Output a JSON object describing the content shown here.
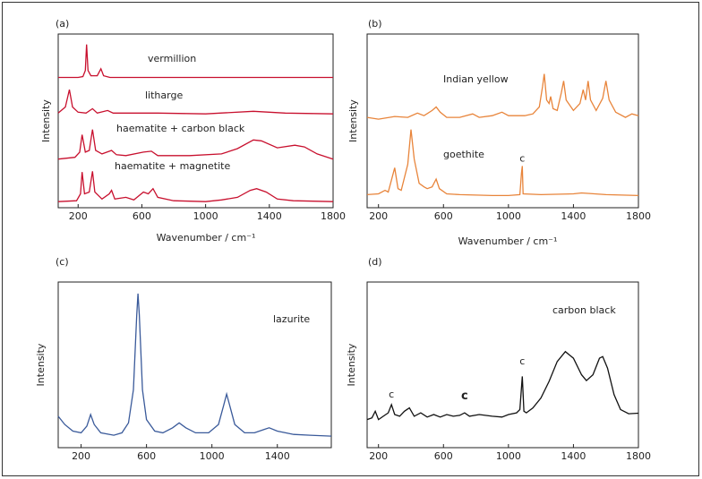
{
  "chart_data": [
    {
      "type": "line",
      "label": "(a)",
      "ylabel": "Intensity",
      "xlabel": "Wavenumber / cm⁻¹",
      "xlim": [
        75,
        1800
      ],
      "xticks": [
        200,
        600,
        1000,
        1400,
        1800
      ],
      "ylim": [
        0,
        100
      ],
      "series": [
        {
          "name": "vermillion",
          "color": "#c8102e",
          "x": [
            75,
            200,
            230,
            245,
            253,
            262,
            280,
            320,
            343,
            360,
            400,
            1800
          ],
          "values": [
            75,
            75,
            75.5,
            79,
            94,
            79,
            76,
            76,
            80,
            76,
            75,
            75
          ]
        },
        {
          "name": "litharge",
          "color": "#c8102e",
          "x": [
            75,
            120,
            145,
            165,
            200,
            250,
            290,
            320,
            385,
            420,
            700,
            1000,
            1300,
            1500,
            1800
          ],
          "values": [
            54.5,
            58,
            68,
            58,
            55,
            54.5,
            57,
            54.5,
            56,
            54.5,
            54.5,
            54,
            55.5,
            54.5,
            54
          ]
        },
        {
          "name": "haematite + carbon black",
          "color": "#c8102e",
          "x": [
            75,
            180,
            210,
            225,
            245,
            270,
            290,
            310,
            350,
            410,
            440,
            500,
            610,
            660,
            700,
            900,
            1100,
            1200,
            1300,
            1350,
            1450,
            1560,
            1620,
            1700,
            1800
          ],
          "values": [
            28,
            29,
            32,
            42,
            32,
            33,
            45,
            33,
            31,
            33,
            30.5,
            30,
            32,
            32.5,
            30,
            30,
            31,
            34,
            39,
            38.5,
            34.5,
            36,
            35,
            31,
            28
          ]
        },
        {
          "name": "haematite + magnetite",
          "color": "#c8102e",
          "x": [
            75,
            190,
            215,
            225,
            240,
            270,
            290,
            305,
            350,
            395,
            410,
            430,
            500,
            550,
            610,
            640,
            670,
            700,
            800,
            1000,
            1100,
            1200,
            1280,
            1320,
            1380,
            1450,
            1550,
            1800
          ],
          "values": [
            3.5,
            4,
            8,
            20.5,
            8,
            9,
            21,
            9,
            5,
            8,
            10,
            5,
            6,
            4.5,
            9,
            8,
            11,
            6,
            4,
            3.5,
            4.5,
            6,
            10,
            11,
            9,
            5,
            4,
            3.5
          ]
        }
      ]
    },
    {
      "type": "line",
      "label": "(b)",
      "ylabel": "Intensity",
      "xlabel": "Wavenumber / cm⁻¹",
      "xlim": [
        130,
        1800
      ],
      "xticks": [
        200,
        600,
        1000,
        1400,
        1800
      ],
      "ylim": [
        0,
        100
      ],
      "series": [
        {
          "name": "Indian yellow",
          "color": "#e8843a",
          "x": [
            130,
            200,
            300,
            380,
            440,
            480,
            530,
            555,
            580,
            620,
            700,
            780,
            820,
            900,
            960,
            1000,
            1100,
            1150,
            1190,
            1210,
            1220,
            1235,
            1250,
            1260,
            1275,
            1300,
            1325,
            1340,
            1355,
            1400,
            1440,
            1460,
            1475,
            1490,
            1505,
            1540,
            1580,
            1600,
            1620,
            1660,
            1720,
            1760,
            1800
          ],
          "values": [
            52,
            51,
            52.5,
            52,
            54.5,
            53,
            56,
            58,
            55,
            52,
            52,
            54,
            52,
            53,
            55,
            53,
            53,
            54,
            58,
            70,
            77,
            62,
            60,
            64,
            57,
            56,
            66,
            73,
            62,
            56,
            60,
            68,
            62,
            73,
            62,
            56,
            63,
            73,
            62,
            55,
            52,
            54,
            53
          ]
        },
        {
          "name": "goethite",
          "color": "#e8843a",
          "x": [
            130,
            200,
            240,
            260,
            300,
            320,
            340,
            380,
            400,
            420,
            450,
            480,
            500,
            530,
            555,
            575,
            620,
            700,
            900,
            1000,
            1070,
            1080,
            1085,
            1090,
            1200,
            1400,
            1450,
            1600,
            1800
          ],
          "values": [
            7.5,
            8,
            10,
            9,
            23,
            11,
            10,
            25,
            45,
            28,
            14,
            12,
            11,
            12,
            16.5,
            11,
            8,
            7.5,
            7,
            7,
            7.5,
            20,
            24,
            8,
            7.5,
            8,
            8.5,
            7.5,
            7
          ]
        }
      ],
      "annotations": [
        {
          "text": "c",
          "x": 1085,
          "y": 28
        }
      ]
    },
    {
      "type": "line",
      "label": "(c)",
      "ylabel": "Intensity",
      "xlim": [
        60,
        1730
      ],
      "xticks": [
        200,
        600,
        1000,
        1400
      ],
      "ylim": [
        0,
        100
      ],
      "series": [
        {
          "name": "lazurite",
          "color": "#3a5a9a",
          "x": [
            60,
            100,
            150,
            200,
            235,
            258,
            280,
            320,
            400,
            450,
            490,
            520,
            540,
            548,
            556,
            575,
            600,
            650,
            700,
            760,
            800,
            840,
            900,
            980,
            1040,
            1070,
            1090,
            1110,
            1140,
            1200,
            1260,
            1320,
            1350,
            1400,
            1500,
            1600,
            1730
          ],
          "values": [
            19,
            14,
            10,
            9,
            13,
            20,
            14,
            9,
            7.5,
            9,
            15,
            35,
            80,
            93,
            80,
            35,
            17,
            10,
            9,
            12,
            15,
            12,
            9,
            9,
            14,
            25,
            32.4,
            25,
            14,
            9,
            9,
            11,
            12,
            10,
            8,
            7.5,
            7
          ]
        }
      ]
    },
    {
      "type": "line",
      "label": "(d)",
      "ylabel": "Intensity",
      "xlim": [
        130,
        1800
      ],
      "xticks": [
        200,
        600,
        1000,
        1400,
        1800
      ],
      "ylim": [
        0,
        100
      ],
      "series": [
        {
          "name": "carbon black",
          "color": "#111111",
          "x": [
            130,
            160,
            180,
            200,
            230,
            260,
            280,
            300,
            330,
            360,
            390,
            420,
            460,
            500,
            540,
            580,
            620,
            660,
            700,
            730,
            760,
            820,
            900,
            960,
            1000,
            1050,
            1070,
            1085,
            1095,
            1110,
            1150,
            1200,
            1250,
            1300,
            1350,
            1400,
            1450,
            1480,
            1520,
            1560,
            1580,
            1610,
            1650,
            1690,
            1740,
            1800
          ],
          "values": [
            17,
            18,
            22,
            17,
            19,
            21,
            26,
            20,
            19,
            22,
            24,
            19,
            21,
            18.5,
            20,
            18.5,
            20,
            19,
            19.5,
            21,
            19,
            20,
            19,
            18.5,
            20,
            21,
            23,
            43,
            22,
            21,
            24,
            30,
            40,
            52,
            58,
            54,
            44,
            40.5,
            44,
            54,
            55,
            48,
            32,
            23,
            20.5,
            20.8
          ]
        }
      ],
      "annotations": [
        {
          "text": "c",
          "x": 280,
          "y": 32
        },
        {
          "text": "c",
          "x": 730,
          "y": 31,
          "bold": true
        },
        {
          "text": "c",
          "x": 1085,
          "y": 52
        }
      ]
    }
  ]
}
